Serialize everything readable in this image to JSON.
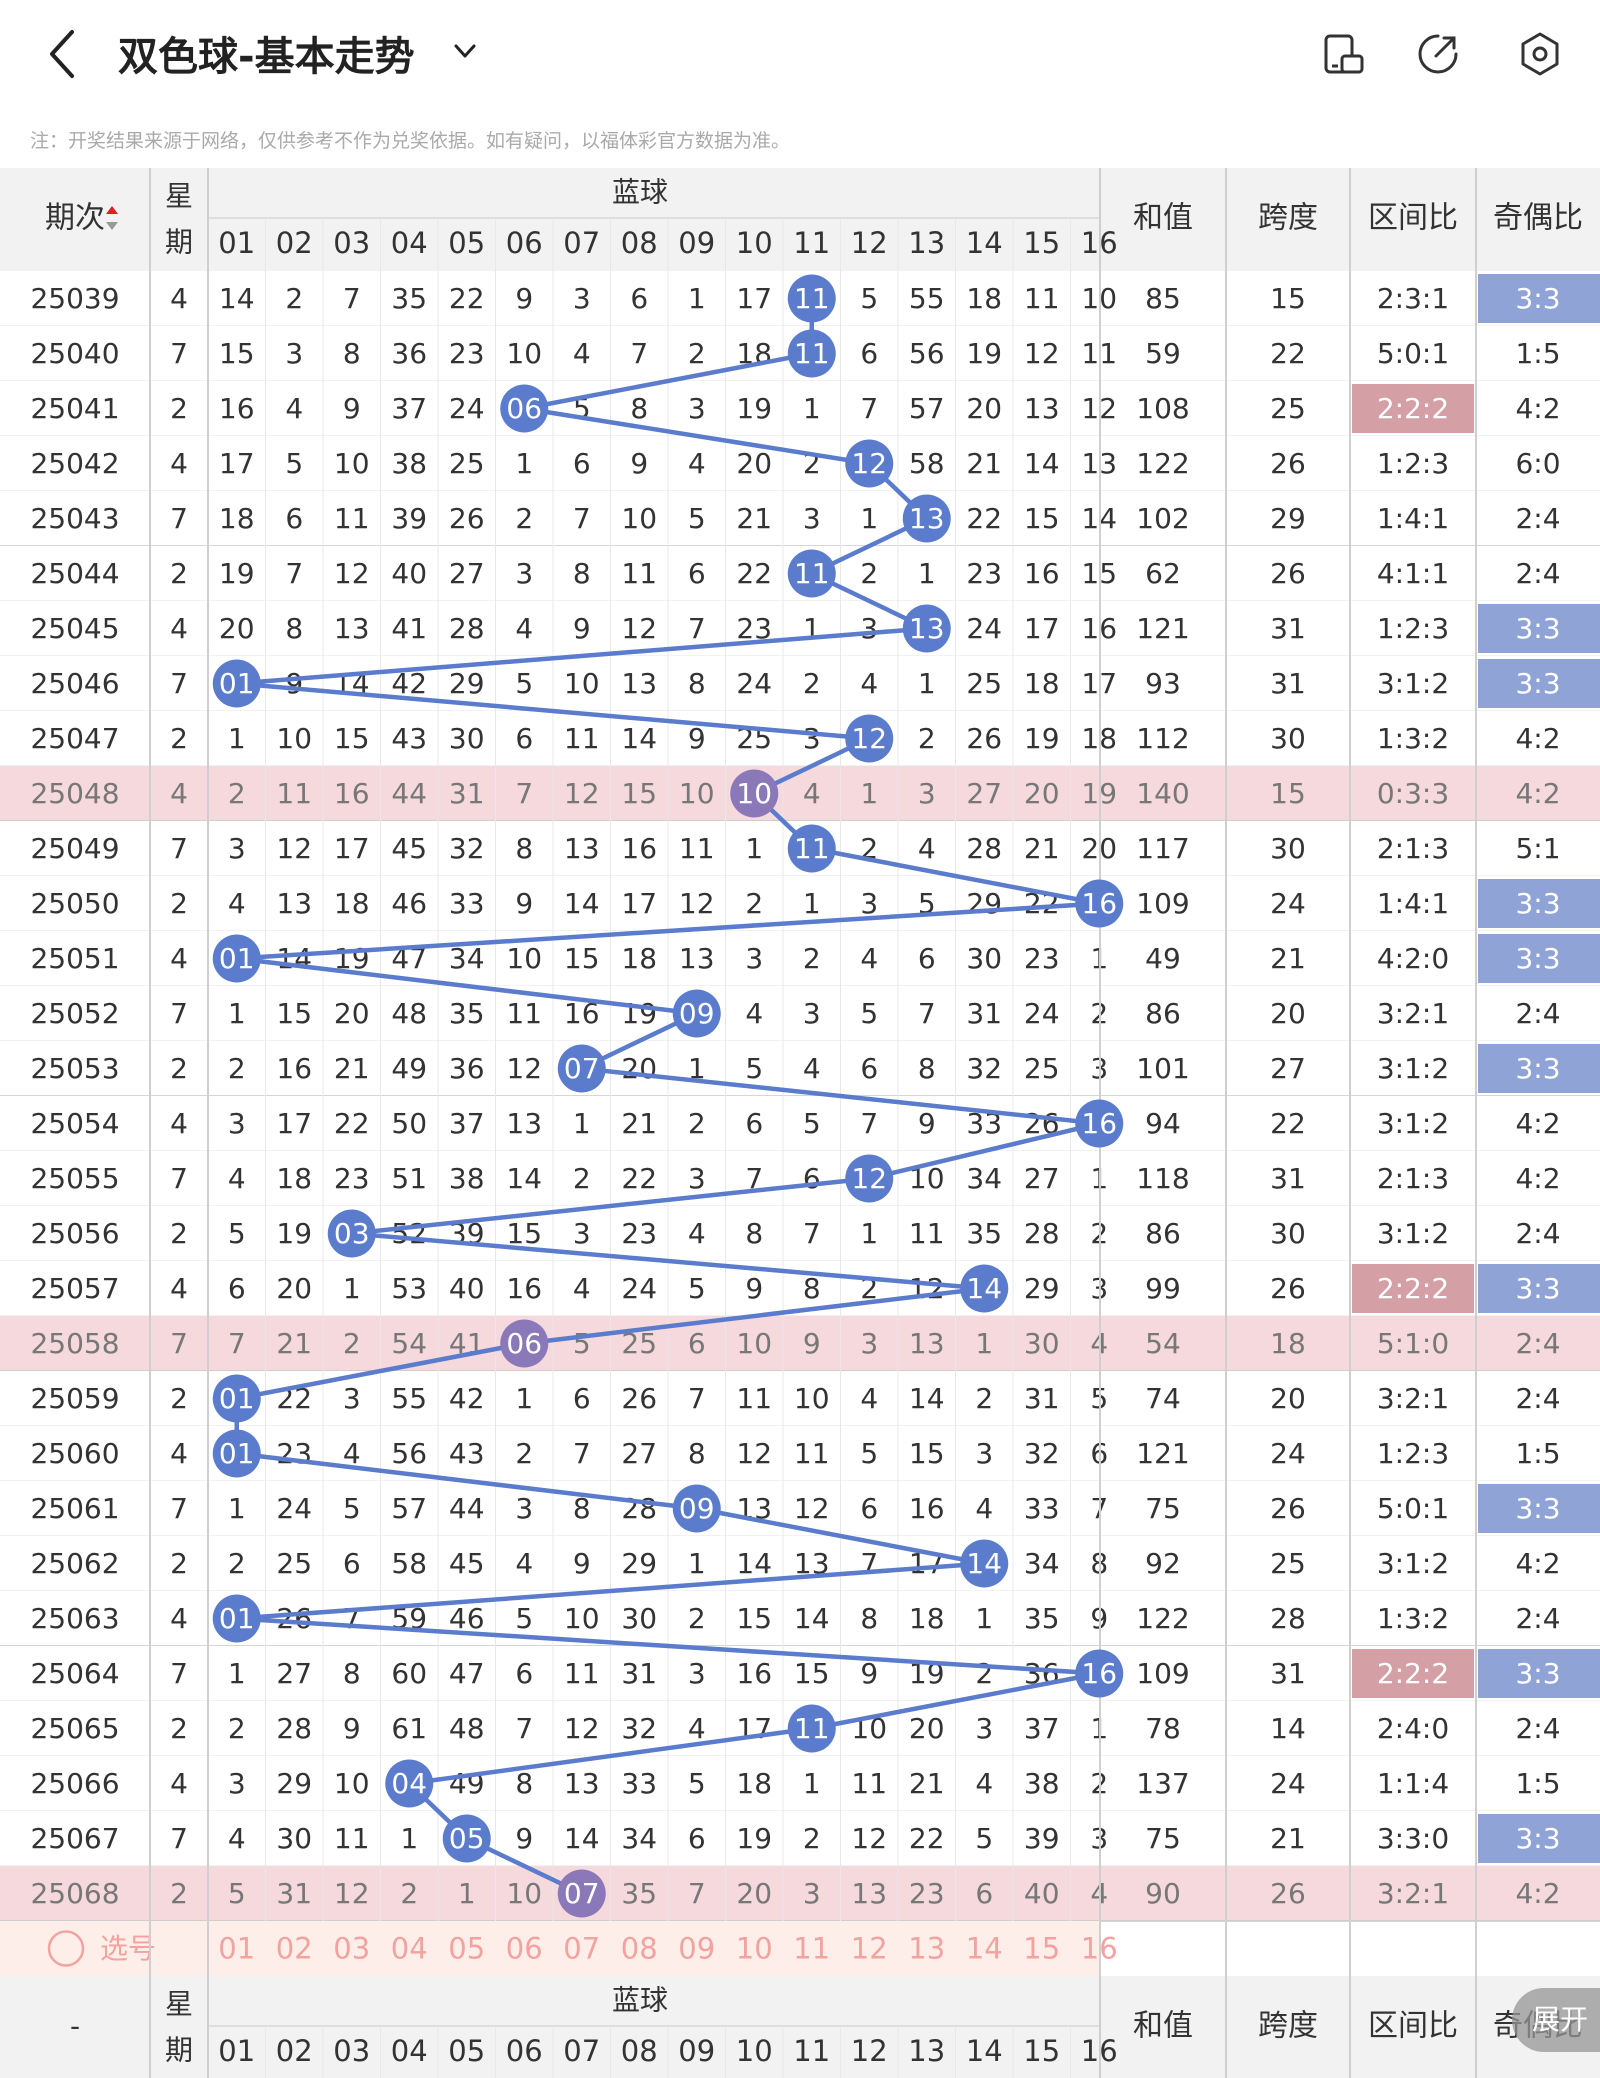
{
  "header": {
    "title": "双色球-基本走势",
    "icons": [
      "back-arrow-icon",
      "chevron-down-icon",
      "device-icon",
      "share-icon",
      "settings-icon"
    ]
  },
  "notice": "注：开奖结果来源于网络，仅供参考不作为兑奖依据。如有疑问，以福体彩官方数据为准。",
  "table": {
    "col_period": "期次",
    "col_week": "星期",
    "blue_group": "蓝球",
    "blue_numbers": [
      "01",
      "02",
      "03",
      "04",
      "05",
      "06",
      "07",
      "08",
      "09",
      "10",
      "11",
      "12",
      "13",
      "14",
      "15",
      "16"
    ],
    "col_sum": "和值",
    "col_span": "跨度",
    "col_zone": "区间比",
    "col_parity": "奇偶比",
    "footer_period": "-",
    "select_label": "选号",
    "expand_label": "展开",
    "rows": [
      {
        "p": "25039",
        "w": "4",
        "b": "11",
        "c": [
          "14",
          "2",
          "7",
          "35",
          "22",
          "9",
          "3",
          "6",
          "1",
          "17",
          "11",
          "5",
          "55",
          "18",
          "11",
          "10"
        ],
        "sum": "85",
        "span": "15",
        "zone": "2:3:1",
        "par": "3:3",
        "hl": false,
        "zhl": false,
        "phl": true
      },
      {
        "p": "25040",
        "w": "7",
        "b": "11",
        "c": [
          "15",
          "3",
          "8",
          "36",
          "23",
          "10",
          "4",
          "7",
          "2",
          "18",
          "11",
          "6",
          "56",
          "19",
          "12",
          "11"
        ],
        "sum": "59",
        "span": "22",
        "zone": "5:0:1",
        "par": "1:5",
        "hl": false,
        "zhl": false,
        "phl": false
      },
      {
        "p": "25041",
        "w": "2",
        "b": "06",
        "c": [
          "16",
          "4",
          "9",
          "37",
          "24",
          "06",
          "5",
          "8",
          "3",
          "19",
          "1",
          "7",
          "57",
          "20",
          "13",
          "12"
        ],
        "sum": "108",
        "span": "25",
        "zone": "2:2:2",
        "par": "4:2",
        "hl": false,
        "zhl": true,
        "phl": false
      },
      {
        "p": "25042",
        "w": "4",
        "b": "12",
        "c": [
          "17",
          "5",
          "10",
          "38",
          "25",
          "1",
          "6",
          "9",
          "4",
          "20",
          "2",
          "12",
          "58",
          "21",
          "14",
          "13"
        ],
        "sum": "122",
        "span": "26",
        "zone": "1:2:3",
        "par": "6:0",
        "hl": false,
        "zhl": false,
        "phl": false
      },
      {
        "p": "25043",
        "w": "7",
        "b": "13",
        "c": [
          "18",
          "6",
          "11",
          "39",
          "26",
          "2",
          "7",
          "10",
          "5",
          "21",
          "3",
          "1",
          "13",
          "22",
          "15",
          "14"
        ],
        "sum": "102",
        "span": "29",
        "zone": "1:4:1",
        "par": "2:4",
        "hl": false,
        "zhl": false,
        "phl": false
      },
      {
        "p": "25044",
        "w": "2",
        "b": "11",
        "c": [
          "19",
          "7",
          "12",
          "40",
          "27",
          "3",
          "8",
          "11",
          "6",
          "22",
          "11",
          "2",
          "1",
          "23",
          "16",
          "15"
        ],
        "sum": "62",
        "span": "26",
        "zone": "4:1:1",
        "par": "2:4",
        "hl": false,
        "zhl": false,
        "phl": false
      },
      {
        "p": "25045",
        "w": "4",
        "b": "13",
        "c": [
          "20",
          "8",
          "13",
          "41",
          "28",
          "4",
          "9",
          "12",
          "7",
          "23",
          "1",
          "3",
          "13",
          "24",
          "17",
          "16"
        ],
        "sum": "121",
        "span": "31",
        "zone": "1:2:3",
        "par": "3:3",
        "hl": false,
        "zhl": false,
        "phl": true
      },
      {
        "p": "25046",
        "w": "7",
        "b": "01",
        "c": [
          "01",
          "9",
          "14",
          "42",
          "29",
          "5",
          "10",
          "13",
          "8",
          "24",
          "2",
          "4",
          "1",
          "25",
          "18",
          "17"
        ],
        "sum": "93",
        "span": "31",
        "zone": "3:1:2",
        "par": "3:3",
        "hl": false,
        "zhl": false,
        "phl": true
      },
      {
        "p": "25047",
        "w": "2",
        "b": "12",
        "c": [
          "1",
          "10",
          "15",
          "43",
          "30",
          "6",
          "11",
          "14",
          "9",
          "25",
          "3",
          "12",
          "2",
          "26",
          "19",
          "18"
        ],
        "sum": "112",
        "span": "30",
        "zone": "1:3:2",
        "par": "4:2",
        "hl": false,
        "zhl": false,
        "phl": false
      },
      {
        "p": "25048",
        "w": "4",
        "b": "10",
        "c": [
          "2",
          "11",
          "16",
          "44",
          "31",
          "7",
          "12",
          "15",
          "10",
          "10",
          "4",
          "1",
          "3",
          "27",
          "20",
          "19"
        ],
        "sum": "140",
        "span": "15",
        "zone": "0:3:3",
        "par": "4:2",
        "hl": true,
        "zhl": false,
        "phl": false
      },
      {
        "p": "25049",
        "w": "7",
        "b": "11",
        "c": [
          "3",
          "12",
          "17",
          "45",
          "32",
          "8",
          "13",
          "16",
          "11",
          "1",
          "11",
          "2",
          "4",
          "28",
          "21",
          "20"
        ],
        "sum": "117",
        "span": "30",
        "zone": "2:1:3",
        "par": "5:1",
        "hl": false,
        "zhl": false,
        "phl": false
      },
      {
        "p": "25050",
        "w": "2",
        "b": "16",
        "c": [
          "4",
          "13",
          "18",
          "46",
          "33",
          "9",
          "14",
          "17",
          "12",
          "2",
          "1",
          "3",
          "5",
          "29",
          "22",
          "16"
        ],
        "sum": "109",
        "span": "24",
        "zone": "1:4:1",
        "par": "3:3",
        "hl": false,
        "zhl": false,
        "phl": true
      },
      {
        "p": "25051",
        "w": "4",
        "b": "01",
        "c": [
          "01",
          "14",
          "19",
          "47",
          "34",
          "10",
          "15",
          "18",
          "13",
          "3",
          "2",
          "4",
          "6",
          "30",
          "23",
          "1"
        ],
        "sum": "49",
        "span": "21",
        "zone": "4:2:0",
        "par": "3:3",
        "hl": false,
        "zhl": false,
        "phl": true
      },
      {
        "p": "25052",
        "w": "7",
        "b": "09",
        "c": [
          "1",
          "15",
          "20",
          "48",
          "35",
          "11",
          "16",
          "19",
          "09",
          "4",
          "3",
          "5",
          "7",
          "31",
          "24",
          "2"
        ],
        "sum": "86",
        "span": "20",
        "zone": "3:2:1",
        "par": "2:4",
        "hl": false,
        "zhl": false,
        "phl": false
      },
      {
        "p": "25053",
        "w": "2",
        "b": "07",
        "c": [
          "2",
          "16",
          "21",
          "49",
          "36",
          "12",
          "07",
          "20",
          "1",
          "5",
          "4",
          "6",
          "8",
          "32",
          "25",
          "3"
        ],
        "sum": "101",
        "span": "27",
        "zone": "3:1:2",
        "par": "3:3",
        "hl": false,
        "zhl": false,
        "phl": true
      },
      {
        "p": "25054",
        "w": "4",
        "b": "16",
        "c": [
          "3",
          "17",
          "22",
          "50",
          "37",
          "13",
          "1",
          "21",
          "2",
          "6",
          "5",
          "7",
          "9",
          "33",
          "26",
          "16"
        ],
        "sum": "94",
        "span": "22",
        "zone": "3:1:2",
        "par": "4:2",
        "hl": false,
        "zhl": false,
        "phl": false
      },
      {
        "p": "25055",
        "w": "7",
        "b": "12",
        "c": [
          "4",
          "18",
          "23",
          "51",
          "38",
          "14",
          "2",
          "22",
          "3",
          "7",
          "6",
          "12",
          "10",
          "34",
          "27",
          "1"
        ],
        "sum": "118",
        "span": "31",
        "zone": "2:1:3",
        "par": "4:2",
        "hl": false,
        "zhl": false,
        "phl": false
      },
      {
        "p": "25056",
        "w": "2",
        "b": "03",
        "c": [
          "5",
          "19",
          "03",
          "52",
          "39",
          "15",
          "3",
          "23",
          "4",
          "8",
          "7",
          "1",
          "11",
          "35",
          "28",
          "2"
        ],
        "sum": "86",
        "span": "30",
        "zone": "3:1:2",
        "par": "2:4",
        "hl": false,
        "zhl": false,
        "phl": false
      },
      {
        "p": "25057",
        "w": "4",
        "b": "14",
        "c": [
          "6",
          "20",
          "1",
          "53",
          "40",
          "16",
          "4",
          "24",
          "5",
          "9",
          "8",
          "2",
          "12",
          "14",
          "29",
          "3"
        ],
        "sum": "99",
        "span": "26",
        "zone": "2:2:2",
        "par": "3:3",
        "hl": false,
        "zhl": true,
        "phl": true
      },
      {
        "p": "25058",
        "w": "7",
        "b": "06",
        "c": [
          "7",
          "21",
          "2",
          "54",
          "41",
          "06",
          "5",
          "25",
          "6",
          "10",
          "9",
          "3",
          "13",
          "1",
          "30",
          "4"
        ],
        "sum": "54",
        "span": "18",
        "zone": "5:1:0",
        "par": "2:4",
        "hl": true,
        "zhl": false,
        "phl": false
      },
      {
        "p": "25059",
        "w": "2",
        "b": "01",
        "c": [
          "01",
          "22",
          "3",
          "55",
          "42",
          "1",
          "6",
          "26",
          "7",
          "11",
          "10",
          "4",
          "14",
          "2",
          "31",
          "5"
        ],
        "sum": "74",
        "span": "20",
        "zone": "3:2:1",
        "par": "2:4",
        "hl": false,
        "zhl": false,
        "phl": false
      },
      {
        "p": "25060",
        "w": "4",
        "b": "01",
        "c": [
          "01",
          "23",
          "4",
          "56",
          "43",
          "2",
          "7",
          "27",
          "8",
          "12",
          "11",
          "5",
          "15",
          "3",
          "32",
          "6"
        ],
        "sum": "121",
        "span": "24",
        "zone": "1:2:3",
        "par": "1:5",
        "hl": false,
        "zhl": false,
        "phl": false
      },
      {
        "p": "25061",
        "w": "7",
        "b": "09",
        "c": [
          "1",
          "24",
          "5",
          "57",
          "44",
          "3",
          "8",
          "28",
          "09",
          "13",
          "12",
          "6",
          "16",
          "4",
          "33",
          "7"
        ],
        "sum": "75",
        "span": "26",
        "zone": "5:0:1",
        "par": "3:3",
        "hl": false,
        "zhl": false,
        "phl": true
      },
      {
        "p": "25062",
        "w": "2",
        "b": "14",
        "c": [
          "2",
          "25",
          "6",
          "58",
          "45",
          "4",
          "9",
          "29",
          "1",
          "14",
          "13",
          "7",
          "17",
          "14",
          "34",
          "8"
        ],
        "sum": "92",
        "span": "25",
        "zone": "3:1:2",
        "par": "4:2",
        "hl": false,
        "zhl": false,
        "phl": false
      },
      {
        "p": "25063",
        "w": "4",
        "b": "01",
        "c": [
          "01",
          "26",
          "7",
          "59",
          "46",
          "5",
          "10",
          "30",
          "2",
          "15",
          "14",
          "8",
          "18",
          "1",
          "35",
          "9"
        ],
        "sum": "122",
        "span": "28",
        "zone": "1:3:2",
        "par": "2:4",
        "hl": false,
        "zhl": false,
        "phl": false
      },
      {
        "p": "25064",
        "w": "7",
        "b": "16",
        "c": [
          "1",
          "27",
          "8",
          "60",
          "47",
          "6",
          "11",
          "31",
          "3",
          "16",
          "15",
          "9",
          "19",
          "2",
          "36",
          "16"
        ],
        "sum": "109",
        "span": "31",
        "zone": "2:2:2",
        "par": "3:3",
        "hl": false,
        "zhl": true,
        "phl": true
      },
      {
        "p": "25065",
        "w": "2",
        "b": "11",
        "c": [
          "2",
          "28",
          "9",
          "61",
          "48",
          "7",
          "12",
          "32",
          "4",
          "17",
          "11",
          "10",
          "20",
          "3",
          "37",
          "1"
        ],
        "sum": "78",
        "span": "14",
        "zone": "2:4:0",
        "par": "2:4",
        "hl": false,
        "zhl": false,
        "phl": false
      },
      {
        "p": "25066",
        "w": "4",
        "b": "04",
        "c": [
          "3",
          "29",
          "10",
          "04",
          "49",
          "8",
          "13",
          "33",
          "5",
          "18",
          "1",
          "11",
          "21",
          "4",
          "38",
          "2"
        ],
        "sum": "137",
        "span": "24",
        "zone": "1:1:4",
        "par": "1:5",
        "hl": false,
        "zhl": false,
        "phl": false
      },
      {
        "p": "25067",
        "w": "7",
        "b": "05",
        "c": [
          "4",
          "30",
          "11",
          "1",
          "05",
          "9",
          "14",
          "34",
          "6",
          "19",
          "2",
          "12",
          "22",
          "5",
          "39",
          "3"
        ],
        "sum": "75",
        "span": "21",
        "zone": "3:3:0",
        "par": "3:3",
        "hl": false,
        "zhl": false,
        "phl": true
      },
      {
        "p": "25068",
        "w": "2",
        "b": "07",
        "c": [
          "5",
          "31",
          "12",
          "2",
          "1",
          "10",
          "07",
          "35",
          "7",
          "20",
          "3",
          "13",
          "23",
          "6",
          "40",
          "4"
        ],
        "sum": "90",
        "span": "26",
        "zone": "3:2:1",
        "par": "4:2",
        "hl": true,
        "zhl": false,
        "phl": false
      }
    ]
  },
  "colors": {
    "blue_ball": "#5b7ccc",
    "purple_ball": "#8a78b8",
    "highlight_row": "#f5d9dd",
    "zone_highlight": "#d4a0a6",
    "parity_highlight": "#8fa3d6",
    "select_row": "#fdeeea",
    "select_text": "#f2a3a0"
  }
}
